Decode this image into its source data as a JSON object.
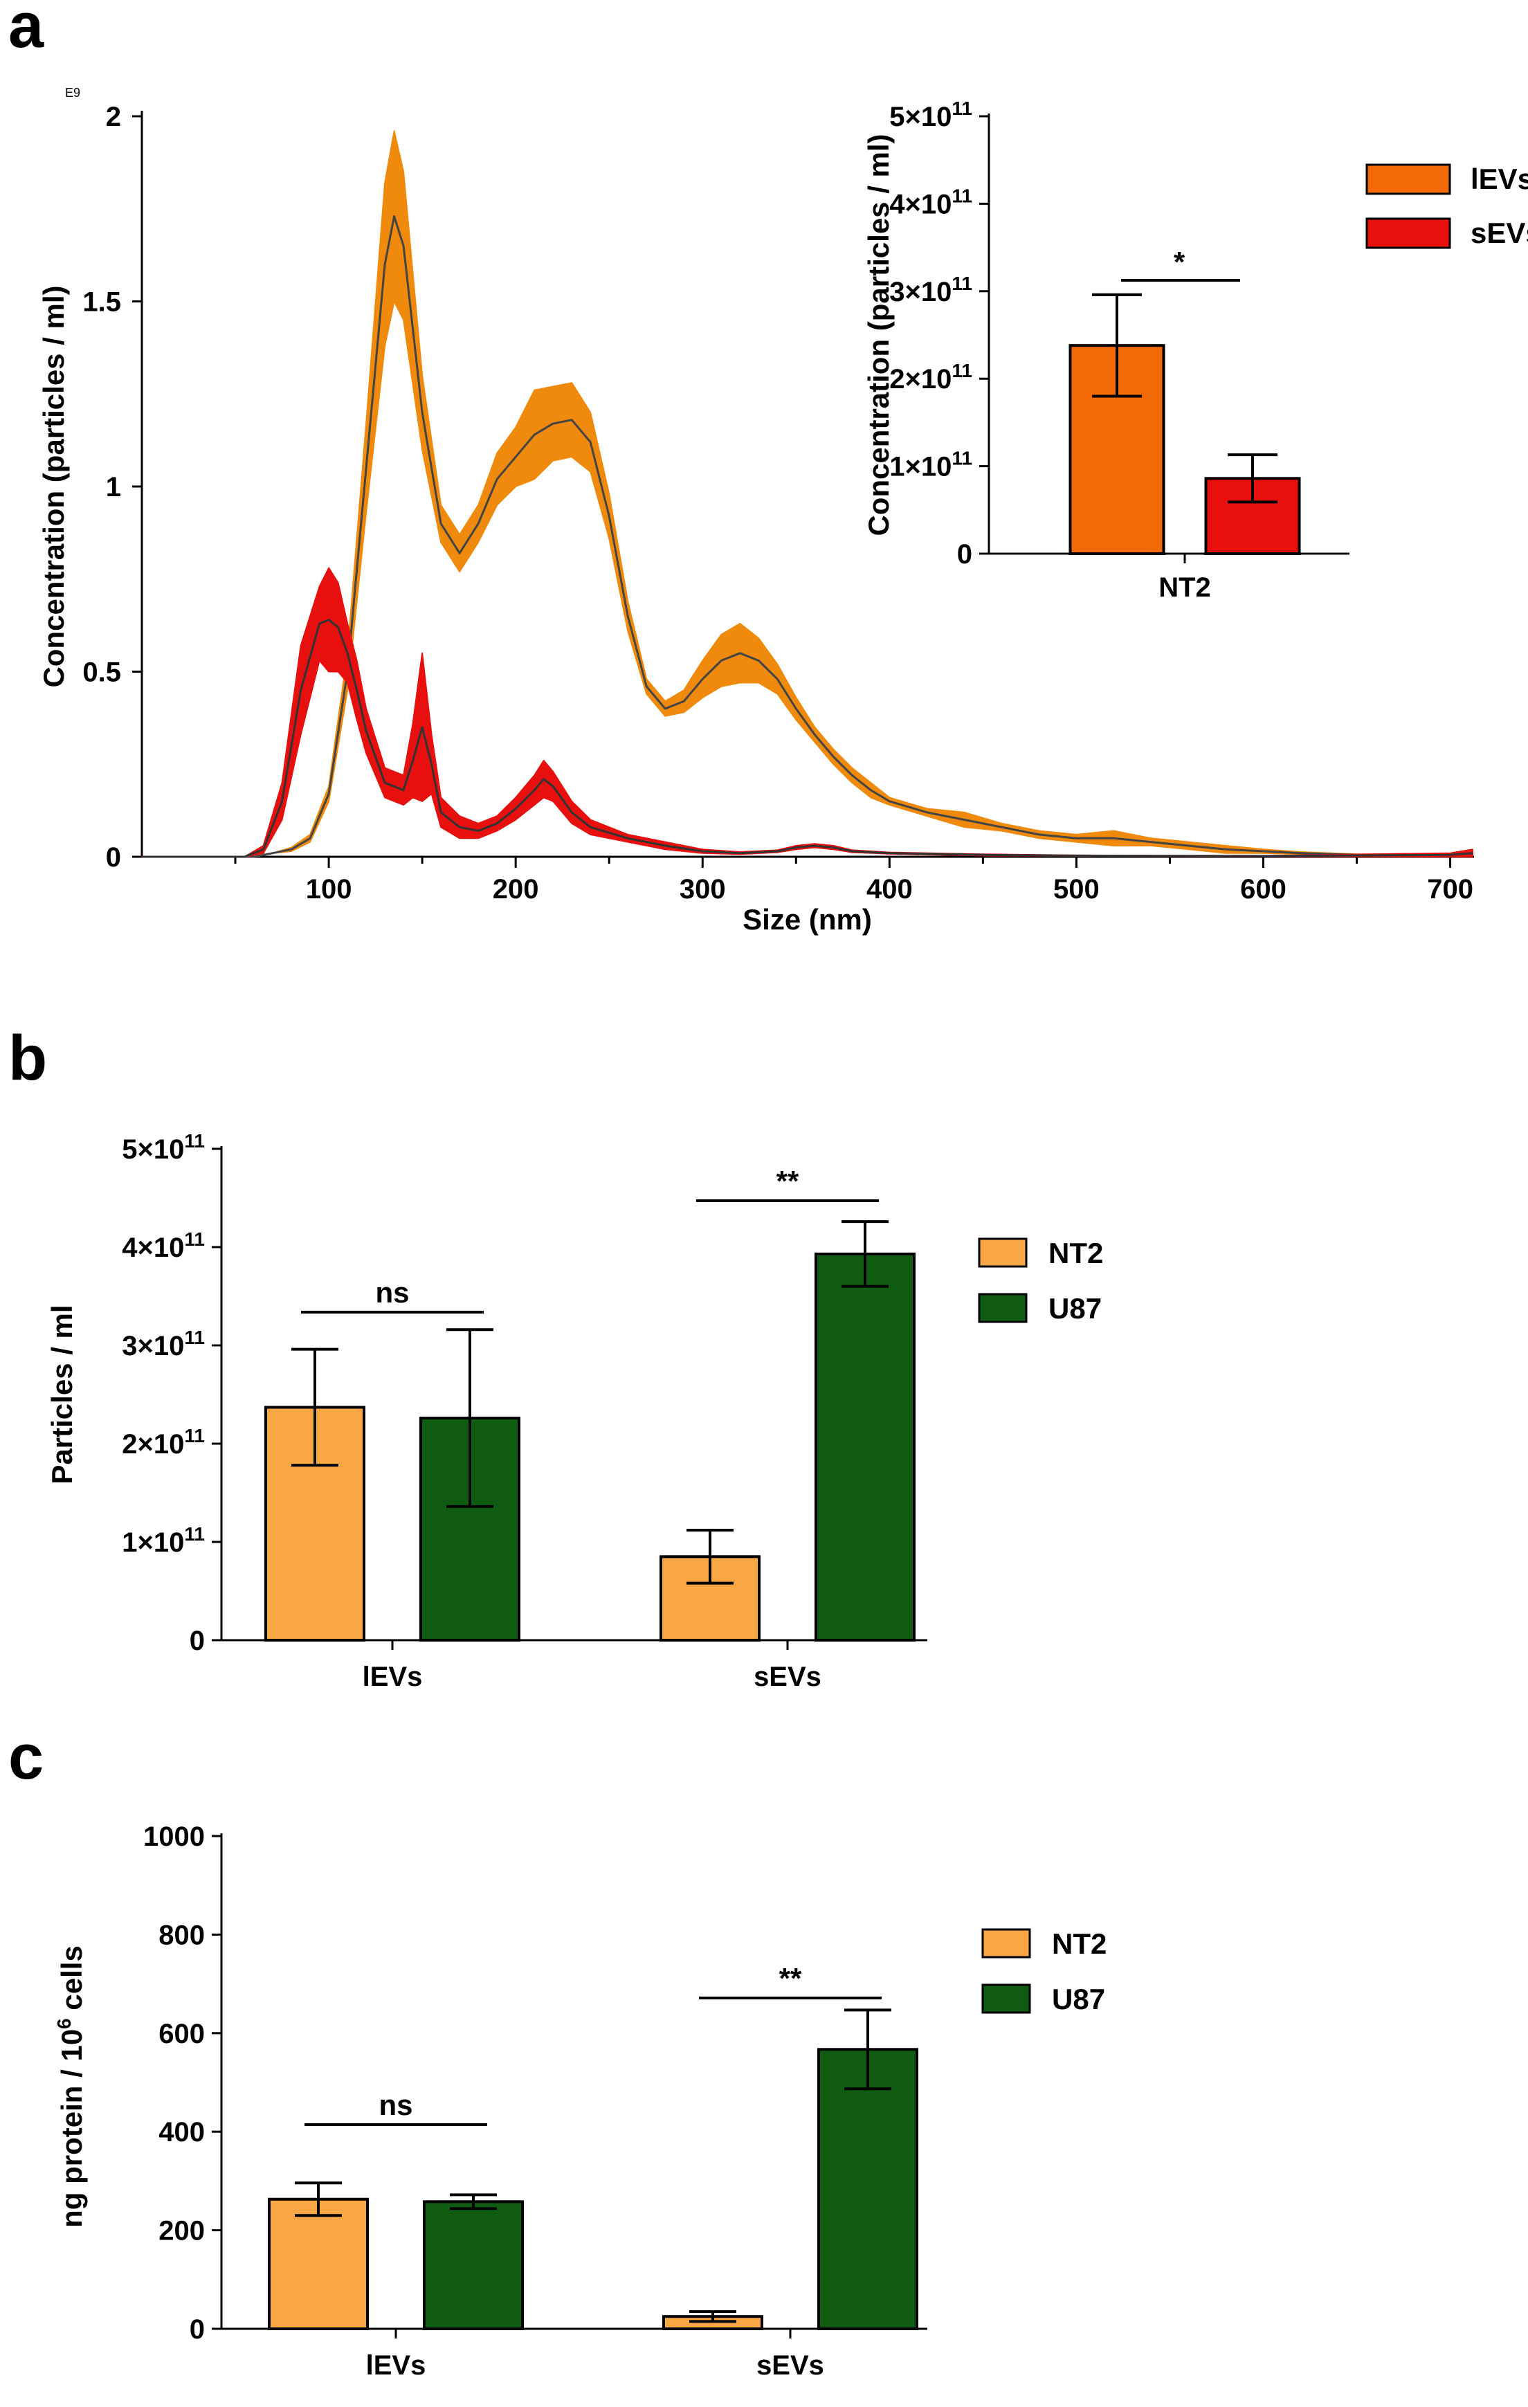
{
  "chart_data": [
    {
      "panel": "a",
      "type": "line",
      "title": "",
      "xlabel": "Size (nm)",
      "ylabel": "Concentration (particles / ml)",
      "y_multiplier_label": "E9",
      "xlim": [
        0,
        712
      ],
      "ylim": [
        0,
        2
      ],
      "xticks": [
        100,
        200,
        300,
        400,
        500,
        600,
        700
      ],
      "yticks": [
        0,
        0.5,
        1,
        1.5,
        2
      ],
      "ytick_labels": [
        "0",
        "0.5",
        "1",
        "1.5",
        "2"
      ],
      "series": [
        {
          "name": "lEVs",
          "color": "#F08A0C",
          "line_color": "#444444",
          "x": [
            0,
            60,
            70,
            80,
            90,
            100,
            110,
            120,
            130,
            135,
            140,
            150,
            160,
            170,
            180,
            190,
            200,
            210,
            220,
            230,
            240,
            250,
            260,
            270,
            280,
            290,
            300,
            310,
            320,
            330,
            340,
            350,
            360,
            370,
            380,
            390,
            400,
            420,
            440,
            460,
            480,
            500,
            520,
            540,
            560,
            580,
            600,
            620,
            650,
            700,
            712
          ],
          "mean": [
            0,
            0,
            0.01,
            0.02,
            0.05,
            0.17,
            0.5,
            1.05,
            1.6,
            1.73,
            1.65,
            1.2,
            0.9,
            0.82,
            0.9,
            1.02,
            1.08,
            1.14,
            1.17,
            1.18,
            1.12,
            0.92,
            0.65,
            0.46,
            0.4,
            0.42,
            0.48,
            0.53,
            0.55,
            0.53,
            0.48,
            0.4,
            0.33,
            0.27,
            0.22,
            0.18,
            0.15,
            0.12,
            0.1,
            0.08,
            0.06,
            0.05,
            0.05,
            0.04,
            0.03,
            0.02,
            0.015,
            0.01,
            0.005,
            0.003,
            0.003
          ],
          "sem": [
            0,
            0,
            0,
            0.005,
            0.01,
            0.02,
            0.05,
            0.12,
            0.22,
            0.23,
            0.2,
            0.1,
            0.05,
            0.05,
            0.05,
            0.07,
            0.08,
            0.12,
            0.1,
            0.1,
            0.08,
            0.06,
            0.04,
            0.02,
            0.02,
            0.03,
            0.05,
            0.07,
            0.08,
            0.06,
            0.04,
            0.03,
            0.02,
            0.02,
            0.02,
            0.02,
            0.01,
            0.01,
            0.02,
            0.01,
            0.01,
            0.01,
            0.02,
            0.01,
            0.01,
            0.01,
            0.005,
            0.003,
            0.002,
            0.002,
            0.002
          ]
        },
        {
          "name": "sEVs",
          "color": "#E8100E",
          "line_color": "#333333",
          "x": [
            0,
            55,
            65,
            75,
            85,
            95,
            100,
            105,
            110,
            115,
            120,
            130,
            140,
            145,
            150,
            155,
            160,
            170,
            180,
            190,
            200,
            210,
            215,
            220,
            230,
            240,
            260,
            280,
            300,
            320,
            340,
            350,
            360,
            370,
            380,
            400,
            450,
            500,
            600,
            700,
            712
          ],
          "mean": [
            0,
            0,
            0.02,
            0.15,
            0.45,
            0.63,
            0.64,
            0.62,
            0.55,
            0.45,
            0.34,
            0.2,
            0.18,
            0.26,
            0.35,
            0.25,
            0.12,
            0.08,
            0.07,
            0.09,
            0.13,
            0.18,
            0.21,
            0.19,
            0.12,
            0.08,
            0.05,
            0.03,
            0.015,
            0.01,
            0.015,
            0.025,
            0.03,
            0.025,
            0.015,
            0.01,
            0.005,
            0.003,
            0.002,
            0.005,
            0.01
          ],
          "sem": [
            0,
            0,
            0.01,
            0.05,
            0.12,
            0.1,
            0.14,
            0.12,
            0.08,
            0.08,
            0.06,
            0.04,
            0.04,
            0.1,
            0.2,
            0.08,
            0.04,
            0.03,
            0.02,
            0.02,
            0.03,
            0.04,
            0.05,
            0.04,
            0.03,
            0.02,
            0.01,
            0.01,
            0.005,
            0.003,
            0.003,
            0.005,
            0.005,
            0.005,
            0.003,
            0.002,
            0.002,
            0.001,
            0.001,
            0.005,
            0.01
          ]
        }
      ],
      "legend": [
        {
          "label": "lEVs",
          "color": "#F26A06"
        },
        {
          "label": "sEVs",
          "color": "#E8100E"
        }
      ],
      "legend_position": "top-right",
      "inset": {
        "type": "bar",
        "categories": [
          "NT2"
        ],
        "xtick_labels": [
          "NT2"
        ],
        "ylabel": "Concentration (particles / ml)",
        "ylim": [
          0,
          500000000000.0
        ],
        "yticks": [
          0,
          100000000000.0,
          200000000000.0,
          300000000000.0,
          400000000000.0,
          500000000000.0
        ],
        "ytick_labels": [
          {
            "mant": "0",
            "exp": ""
          },
          {
            "mant": "1",
            "exp": "11"
          },
          {
            "mant": "2",
            "exp": "11"
          },
          {
            "mant": "3",
            "exp": "11"
          },
          {
            "mant": "4",
            "exp": "11"
          },
          {
            "mant": "5",
            "exp": "11"
          }
        ],
        "series": [
          {
            "name": "lEVs",
            "values": [
              238000000000.0
            ],
            "errors": [
              58000000000.0
            ],
            "color": "#F26A06"
          },
          {
            "name": "sEVs",
            "values": [
              86000000000.0
            ],
            "errors": [
              27000000000.0
            ],
            "color": "#E8100E"
          }
        ],
        "significance": "*"
      }
    },
    {
      "panel": "b",
      "type": "bar",
      "title": "",
      "xlabel": "",
      "ylabel": "Particles / ml",
      "categories": [
        "lEVs",
        "sEVs"
      ],
      "ylim": [
        0,
        500000000000.0
      ],
      "yticks": [
        0,
        100000000000.0,
        200000000000.0,
        300000000000.0,
        400000000000.0,
        500000000000.0
      ],
      "ytick_labels": [
        {
          "mant": "0",
          "exp": ""
        },
        {
          "mant": "1",
          "exp": "11"
        },
        {
          "mant": "2",
          "exp": "11"
        },
        {
          "mant": "3",
          "exp": "11"
        },
        {
          "mant": "4",
          "exp": "11"
        },
        {
          "mant": "5",
          "exp": "11"
        }
      ],
      "series": [
        {
          "name": "NT2",
          "values": [
            237000000000.0,
            85000000000.0
          ],
          "errors": [
            59000000000.0,
            27000000000.0
          ],
          "color": "#F9A645"
        },
        {
          "name": "U87",
          "values": [
            226000000000.0,
            393000000000.0
          ],
          "errors": [
            90000000000.0,
            33000000000.0
          ],
          "color": "#0E5B11"
        }
      ],
      "significance": [
        "ns",
        "**"
      ],
      "legend_position": "right"
    },
    {
      "panel": "c",
      "type": "bar",
      "title": "",
      "xlabel": "",
      "ylabel_main": "ng protein / 10",
      "ylabel_sup": "6",
      "ylabel_tail": " cells",
      "categories": [
        "lEVs",
        "sEVs"
      ],
      "ylim": [
        0,
        1000
      ],
      "yticks": [
        0,
        200,
        400,
        600,
        800,
        1000
      ],
      "ytick_labels": [
        "0",
        "200",
        "400",
        "600",
        "800",
        "1000"
      ],
      "series": [
        {
          "name": "NT2",
          "values": [
            263,
            25
          ],
          "errors": [
            33,
            10
          ],
          "color": "#F9A645"
        },
        {
          "name": "U87",
          "values": [
            258,
            567
          ],
          "errors": [
            14,
            80
          ],
          "color": "#0E5B11"
        }
      ],
      "significance": [
        "ns",
        "**"
      ],
      "legend_position": "right"
    }
  ]
}
